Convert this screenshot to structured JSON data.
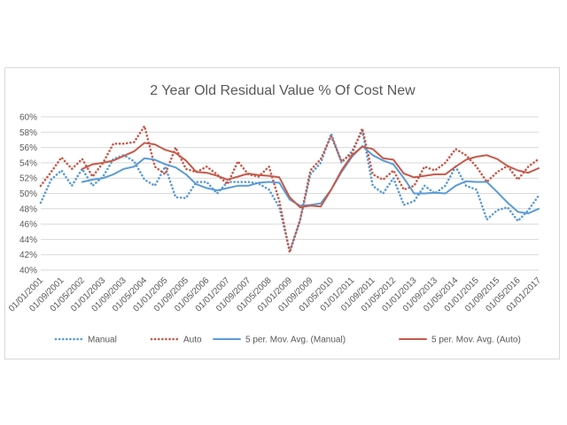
{
  "chart_data": {
    "type": "line",
    "title": "2 Year Old Residual Value % Of Cost New",
    "xlabel": "",
    "ylabel": "",
    "ylim": [
      40,
      60
    ],
    "y_ticks": [
      "40%",
      "42%",
      "44%",
      "46%",
      "48%",
      "50%",
      "52%",
      "54%",
      "56%",
      "58%",
      "60%"
    ],
    "x_tick_labels": [
      "01/01/2001",
      "01/09/2001",
      "01/05/2002",
      "01/01/2003",
      "01/09/2003",
      "01/05/2004",
      "01/01/2005",
      "01/09/2005",
      "01/05/2006",
      "01/01/2007",
      "01/09/2007",
      "01/05/2008",
      "01/01/2009",
      "01/09/2009",
      "01/05/2010",
      "01/01/2011",
      "01/09/2011",
      "01/05/2012",
      "01/01/2013",
      "01/09/2013",
      "01/05/2014",
      "01/01/2015",
      "01/09/2015",
      "01/05/2016",
      "01/01/2017"
    ],
    "grid": true,
    "legend_position": "bottom",
    "x_period_months": 4,
    "series": [
      {
        "name": "Manual",
        "style": "dotted",
        "color": "#5b9bd5",
        "values": [
          48.8,
          51.8,
          53.0,
          51.0,
          53.2,
          51.0,
          52.2,
          54.5,
          55.0,
          54.2,
          51.8,
          51.0,
          53.5,
          49.5,
          49.4,
          51.5,
          51.5,
          50.0,
          51.5,
          51.5,
          51.5,
          51.3,
          50.5,
          48.2,
          42.5,
          46.5,
          52.5,
          54.0,
          57.8,
          54.0,
          55.5,
          58.2,
          51.0,
          50.0,
          52.0,
          48.5,
          49.0,
          51.0,
          50.0,
          51.0,
          53.5,
          51.0,
          50.5,
          46.6,
          47.8,
          48.2,
          46.4,
          47.8,
          49.7
        ]
      },
      {
        "name": "Auto",
        "style": "dotted",
        "color": "#c55a4a",
        "values": [
          51.0,
          52.8,
          54.7,
          53.2,
          54.5,
          52.2,
          54.0,
          56.5,
          56.5,
          56.7,
          58.8,
          53.5,
          52.5,
          56.0,
          53.2,
          52.8,
          53.5,
          52.5,
          51.2,
          54.2,
          52.5,
          52.2,
          53.5,
          49.0,
          42.3,
          46.5,
          53.0,
          54.5,
          57.5,
          54.2,
          55.2,
          58.5,
          52.5,
          51.8,
          53.0,
          50.5,
          51.0,
          53.5,
          53.0,
          54.0,
          55.8,
          55.0,
          53.5,
          51.5,
          52.8,
          53.6,
          51.8,
          53.5,
          54.5
        ]
      },
      {
        "name": "5 per. Mov. Avg. (Manual)",
        "style": "solid",
        "color": "#5b9bd5",
        "values": [
          null,
          null,
          null,
          null,
          51.5,
          51.8,
          52.0,
          52.5,
          53.2,
          53.5,
          54.6,
          54.4,
          53.8,
          53.4,
          52.5,
          51.2,
          50.7,
          50.4,
          50.7,
          51.0,
          51.0,
          51.4,
          51.5,
          51.4,
          49.2,
          48.4,
          48.5,
          48.7,
          50.5,
          52.8,
          54.8,
          56.2,
          55.0,
          54.3,
          53.8,
          52.0,
          50.0,
          50.0,
          50.1,
          50.0,
          51.0,
          51.6,
          51.5,
          51.5,
          50.2,
          48.8,
          47.6,
          47.4,
          48.0
        ]
      },
      {
        "name": "5 per. Mov. Avg. (Auto)",
        "style": "solid",
        "color": "#c55a4a",
        "values": [
          null,
          null,
          null,
          null,
          53.2,
          53.8,
          54.0,
          54.3,
          54.9,
          55.5,
          56.6,
          56.4,
          55.7,
          55.3,
          54.3,
          52.8,
          52.7,
          52.3,
          51.8,
          52.2,
          52.6,
          52.4,
          52.3,
          52.1,
          49.5,
          48.2,
          48.4,
          48.3,
          50.5,
          53.0,
          55.0,
          56.1,
          55.8,
          54.6,
          54.4,
          52.6,
          52.1,
          52.3,
          52.5,
          52.5,
          53.5,
          54.4,
          54.8,
          55.0,
          54.5,
          53.6,
          53.0,
          52.7,
          53.3
        ]
      }
    ]
  }
}
